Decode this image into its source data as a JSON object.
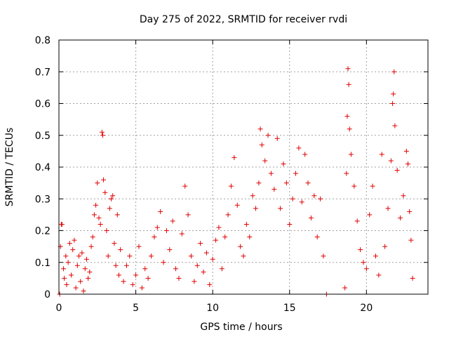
{
  "chart_data": {
    "type": "scatter",
    "title": "Day 275 of 2022, SRMTID for receiver rvdi",
    "xlabel": "GPS time / hours",
    "ylabel": "SRMTID / TECUs",
    "xlim": [
      0,
      24
    ],
    "ylim": [
      0,
      0.8
    ],
    "xticks": [
      0,
      5,
      10,
      15,
      20
    ],
    "xtick_labels": [
      "0",
      "5",
      "10",
      "15",
      "20"
    ],
    "yticks": [
      0,
      0.1,
      0.2,
      0.3,
      0.4,
      0.5,
      0.6,
      0.7,
      0.8
    ],
    "ytick_labels": [
      "0",
      "0.1",
      "0.2",
      "0.3",
      "0.4",
      "0.5",
      "0.6",
      "0.7",
      "0.8"
    ],
    "grid": true,
    "marker": "+",
    "series": [
      {
        "name": "SRMTID",
        "color": "#e00000",
        "points": [
          [
            0.05,
            0.0
          ],
          [
            0.1,
            0.15
          ],
          [
            0.15,
            0.22
          ],
          [
            0.2,
            0.22
          ],
          [
            0.3,
            0.08
          ],
          [
            0.35,
            0.05
          ],
          [
            0.45,
            0.12
          ],
          [
            0.5,
            0.03
          ],
          [
            0.6,
            0.1
          ],
          [
            0.7,
            0.16
          ],
          [
            0.8,
            0.06
          ],
          [
            0.9,
            0.14
          ],
          [
            1.0,
            0.17
          ],
          [
            1.1,
            0.02
          ],
          [
            1.2,
            0.09
          ],
          [
            1.3,
            0.12
          ],
          [
            1.4,
            0.04
          ],
          [
            1.5,
            0.13
          ],
          [
            1.6,
            0.01
          ],
          [
            1.7,
            0.08
          ],
          [
            1.8,
            0.11
          ],
          [
            1.9,
            0.05
          ],
          [
            2.0,
            0.07
          ],
          [
            2.1,
            0.15
          ],
          [
            2.2,
            0.18
          ],
          [
            2.3,
            0.25
          ],
          [
            2.4,
            0.28
          ],
          [
            2.5,
            0.35
          ],
          [
            2.6,
            0.24
          ],
          [
            2.7,
            0.22
          ],
          [
            2.8,
            0.51
          ],
          [
            2.85,
            0.5
          ],
          [
            2.9,
            0.36
          ],
          [
            3.0,
            0.32
          ],
          [
            3.1,
            0.2
          ],
          [
            3.2,
            0.12
          ],
          [
            3.3,
            0.27
          ],
          [
            3.4,
            0.3
          ],
          [
            3.5,
            0.31
          ],
          [
            3.6,
            0.16
          ],
          [
            3.7,
            0.09
          ],
          [
            3.8,
            0.25
          ],
          [
            3.9,
            0.06
          ],
          [
            4.0,
            0.14
          ],
          [
            4.2,
            0.04
          ],
          [
            4.4,
            0.09
          ],
          [
            4.6,
            0.12
          ],
          [
            4.8,
            0.03
          ],
          [
            5.0,
            0.06
          ],
          [
            5.2,
            0.15
          ],
          [
            5.4,
            0.02
          ],
          [
            5.6,
            0.08
          ],
          [
            5.8,
            0.05
          ],
          [
            6.0,
            0.12
          ],
          [
            6.2,
            0.18
          ],
          [
            6.4,
            0.21
          ],
          [
            6.6,
            0.26
          ],
          [
            6.8,
            0.1
          ],
          [
            7.0,
            0.2
          ],
          [
            7.2,
            0.14
          ],
          [
            7.4,
            0.23
          ],
          [
            7.6,
            0.08
          ],
          [
            7.8,
            0.05
          ],
          [
            8.0,
            0.19
          ],
          [
            8.2,
            0.34
          ],
          [
            8.4,
            0.25
          ],
          [
            8.6,
            0.12
          ],
          [
            8.8,
            0.04
          ],
          [
            9.0,
            0.09
          ],
          [
            9.2,
            0.16
          ],
          [
            9.4,
            0.07
          ],
          [
            9.6,
            0.13
          ],
          [
            9.8,
            0.03
          ],
          [
            10.0,
            0.11
          ],
          [
            10.2,
            0.17
          ],
          [
            10.4,
            0.21
          ],
          [
            10.6,
            0.08
          ],
          [
            10.8,
            0.18
          ],
          [
            11.0,
            0.25
          ],
          [
            11.2,
            0.34
          ],
          [
            11.4,
            0.43
          ],
          [
            11.6,
            0.28
          ],
          [
            11.8,
            0.15
          ],
          [
            12.0,
            0.12
          ],
          [
            12.2,
            0.22
          ],
          [
            12.4,
            0.18
          ],
          [
            12.6,
            0.31
          ],
          [
            12.8,
            0.27
          ],
          [
            13.0,
            0.35
          ],
          [
            13.1,
            0.52
          ],
          [
            13.2,
            0.47
          ],
          [
            13.4,
            0.42
          ],
          [
            13.6,
            0.5
          ],
          [
            13.8,
            0.38
          ],
          [
            14.0,
            0.33
          ],
          [
            14.2,
            0.49
          ],
          [
            14.4,
            0.27
          ],
          [
            14.6,
            0.41
          ],
          [
            14.8,
            0.35
          ],
          [
            15.0,
            0.22
          ],
          [
            15.2,
            0.3
          ],
          [
            15.4,
            0.38
          ],
          [
            15.6,
            0.46
          ],
          [
            15.8,
            0.29
          ],
          [
            16.0,
            0.44
          ],
          [
            16.2,
            0.35
          ],
          [
            16.4,
            0.24
          ],
          [
            16.6,
            0.31
          ],
          [
            16.8,
            0.18
          ],
          [
            17.0,
            0.3
          ],
          [
            17.2,
            0.12
          ],
          [
            17.4,
            0.0
          ],
          [
            18.6,
            0.02
          ],
          [
            18.7,
            0.38
          ],
          [
            18.75,
            0.56
          ],
          [
            18.8,
            0.71
          ],
          [
            18.85,
            0.66
          ],
          [
            18.9,
            0.52
          ],
          [
            19.0,
            0.44
          ],
          [
            19.2,
            0.34
          ],
          [
            19.4,
            0.23
          ],
          [
            19.6,
            0.14
          ],
          [
            19.8,
            0.1
          ],
          [
            20.0,
            0.08
          ],
          [
            20.2,
            0.25
          ],
          [
            20.4,
            0.34
          ],
          [
            20.6,
            0.12
          ],
          [
            20.8,
            0.06
          ],
          [
            21.0,
            0.44
          ],
          [
            21.2,
            0.15
          ],
          [
            21.4,
            0.27
          ],
          [
            21.6,
            0.42
          ],
          [
            21.7,
            0.6
          ],
          [
            21.75,
            0.63
          ],
          [
            21.8,
            0.7
          ],
          [
            21.85,
            0.53
          ],
          [
            22.0,
            0.39
          ],
          [
            22.2,
            0.24
          ],
          [
            22.4,
            0.31
          ],
          [
            22.6,
            0.45
          ],
          [
            22.7,
            0.41
          ],
          [
            22.8,
            0.26
          ],
          [
            22.9,
            0.17
          ],
          [
            23.0,
            0.05
          ]
        ]
      }
    ]
  }
}
